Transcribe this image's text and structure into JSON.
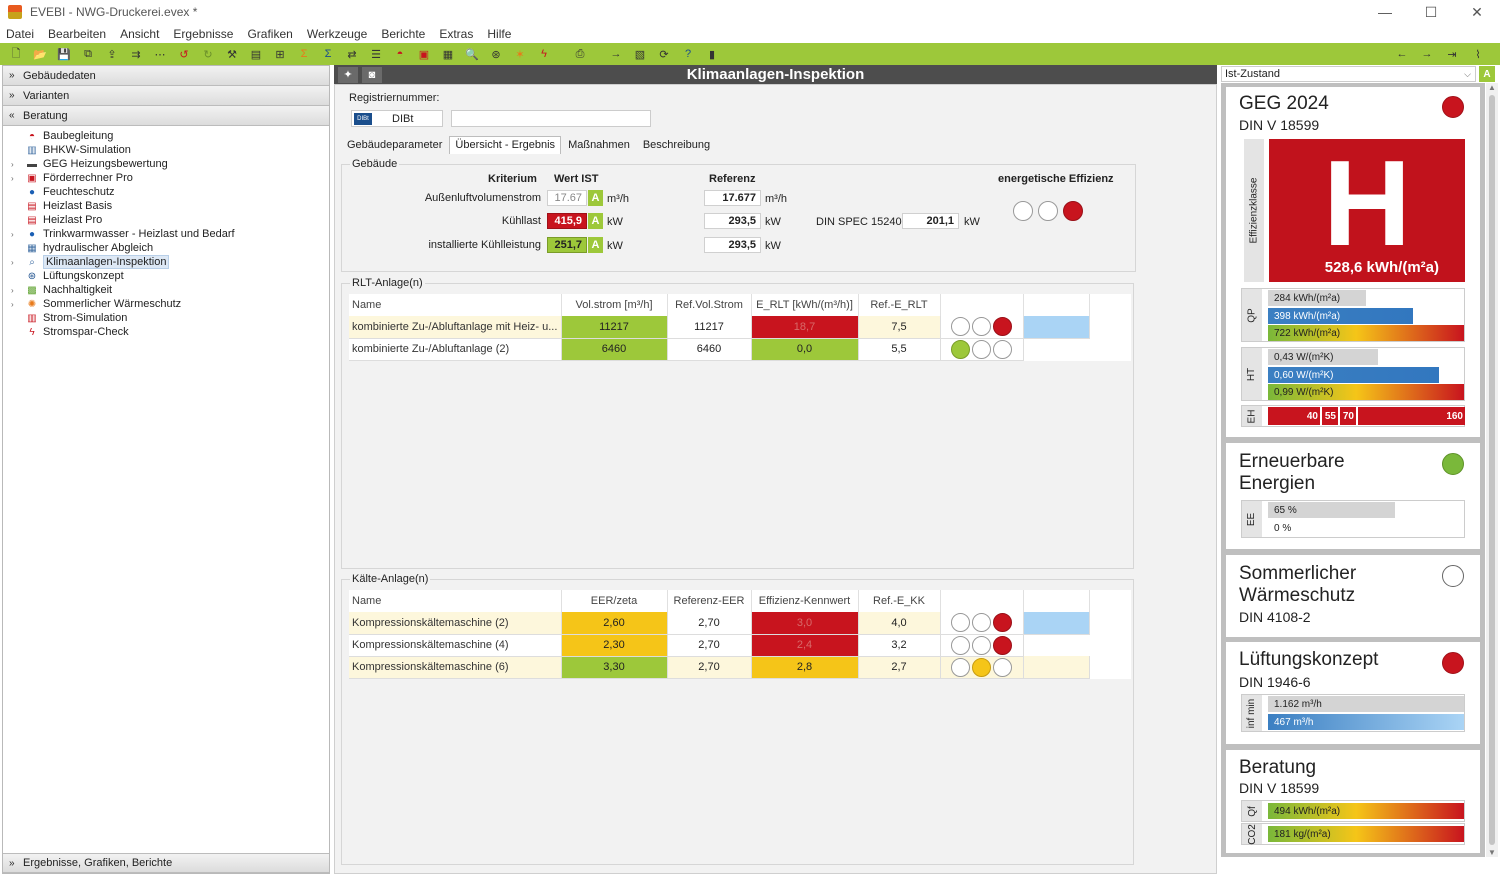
{
  "window": {
    "title": "EVEBI - NWG-Druckerei.evex *"
  },
  "menu": [
    "Datei",
    "Bearbeiten",
    "Ansicht",
    "Ergebnisse",
    "Grafiken",
    "Werkzeuge",
    "Berichte",
    "Extras",
    "Hilfe"
  ],
  "left": {
    "sections": {
      "gebaeudedaten": "Gebäudedaten",
      "varianten": "Varianten",
      "beratung": "Beratung",
      "ergebnisse": "Ergebnisse, Grafiken, Berichte"
    },
    "tree": [
      {
        "label": "Baubegleitung",
        "icon": "helmet-icon",
        "expandable": false
      },
      {
        "label": "BHKW-Simulation",
        "icon": "chp-icon",
        "expandable": false
      },
      {
        "label": "GEG Heizungsbewertung",
        "icon": "heating-icon",
        "expandable": true
      },
      {
        "label": "Förderrechner Pro",
        "icon": "calculator-icon",
        "expandable": true
      },
      {
        "label": "Feuchteschutz",
        "icon": "drop-icon",
        "expandable": false
      },
      {
        "label": "Heizlast Basis",
        "icon": "document-icon",
        "expandable": false
      },
      {
        "label": "Heizlast Pro",
        "icon": "document-icon",
        "expandable": false
      },
      {
        "label": "Trinkwarmwasser - Heizlast und Bedarf",
        "icon": "drop-icon",
        "expandable": true
      },
      {
        "label": "hydraulischer Abgleich",
        "icon": "valve-icon",
        "expandable": false
      },
      {
        "label": "Klimaanlagen-Inspektion",
        "icon": "magnifier-icon",
        "expandable": true,
        "selected": true
      },
      {
        "label": "Lüftungskonzept",
        "icon": "fan-icon",
        "expandable": false
      },
      {
        "label": "Nachhaltigkeit",
        "icon": "leaf-icon",
        "expandable": true
      },
      {
        "label": "Sommerlicher Wärmeschutz",
        "icon": "sun-icon",
        "expandable": true
      },
      {
        "label": "Strom-Simulation",
        "icon": "chart-icon",
        "expandable": false
      },
      {
        "label": "Stromspar-Check",
        "icon": "lightning-icon",
        "expandable": false
      }
    ]
  },
  "center": {
    "title": "Klimaanlagen-Inspektion",
    "regnum_label": "Registriernummer:",
    "dibt_label": "DIBt",
    "dibt_logo": "DIBt",
    "tabs": [
      "Gebäudeparameter",
      "Übersicht - Ergebnis",
      "Maßnahmen",
      "Beschreibung"
    ],
    "gebaeude": {
      "group": "Gebäude",
      "h_kriterium": "Kriterium",
      "h_wert": "Wert IST",
      "h_referenz": "Referenz",
      "h_effizienz": "energetische Effizienz",
      "rows": [
        {
          "label": "Außenluftvolumenstrom",
          "value": "17.67",
          "grade": "A",
          "unit": "m³/h",
          "ref": "17.677",
          "ref_unit": "m³/h"
        },
        {
          "label": "Kühllast",
          "value": "415,9",
          "grade": "A",
          "unit": "kW",
          "ref": "293,5",
          "ref_unit": "kW"
        },
        {
          "label": "installierte Kühlleistung",
          "value": "251,7",
          "grade": "A",
          "unit": "kW",
          "ref": "293,5",
          "ref_unit": "kW"
        }
      ],
      "din_label": "DIN SPEC 15240",
      "din_value": "201,1",
      "din_unit": "kW"
    },
    "rlt": {
      "group": "RLT-Anlage(n)",
      "headers": [
        "Name",
        "Vol.strom [m³/h]",
        "Ref.Vol.Strom",
        "E_RLT [kWh/(m³/h)]",
        "Ref.-E_RLT"
      ],
      "rows": [
        {
          "name": "kombinierte Zu-/Abluftanlage mit Heiz- u...",
          "vol": "11217",
          "ref_vol": "11217",
          "e_rlt": "18,7",
          "ref_e": "7,5"
        },
        {
          "name": "kombinierte Zu-/Abluftanlage (2)",
          "vol": "6460",
          "ref_vol": "6460",
          "e_rlt": "0,0",
          "ref_e": "5,5"
        }
      ]
    },
    "kaelte": {
      "group": "Kälte-Anlage(n)",
      "headers": [
        "Name",
        "EER/zeta",
        "Referenz-EER",
        "Effizienz-Kennwert",
        "Ref.-E_KK"
      ],
      "rows": [
        {
          "name": "Kompressionskältemaschine (2)",
          "eer": "2,60",
          "ref_eer": "2,70",
          "eff": "3,0",
          "ref_e": "4,0"
        },
        {
          "name": "Kompressionskältemaschine (4)",
          "eer": "2,30",
          "ref_eer": "2,70",
          "eff": "2,4",
          "ref_e": "3,2"
        },
        {
          "name": "Kompressionskältemaschine (6)",
          "eer": "3,30",
          "ref_eer": "2,70",
          "eff": "2,8",
          "ref_e": "2,7"
        }
      ]
    }
  },
  "right": {
    "state_select": "Ist-Zustand",
    "state_btn": "A",
    "geg": {
      "title": "GEG 2024",
      "subtitle": "DIN V 18599",
      "class_letter": "H",
      "class_label": "Effizienzklasse",
      "value": "528,6 kWh/(m²a)",
      "qp_label": "QP",
      "qp": [
        "284 kWh/(m²a)",
        "398 kWh/(m²a)",
        "722 kWh/(m²a)"
      ],
      "qp_fill": [
        0.5,
        0.74,
        1.0
      ],
      "ht_label": "HT",
      "ht": [
        "0,43 W/(m²K)",
        "0,60 W/(m²K)",
        "0,99 W/(m²K)"
      ],
      "ht_fill": [
        0.56,
        0.87,
        1.0
      ],
      "eh_label": "EH",
      "eh_marks": [
        "40",
        "55",
        "70",
        "160"
      ]
    },
    "ee": {
      "title": "Erneuerbare Energien",
      "label": "EE",
      "bars": [
        "65 %",
        "0 %"
      ],
      "fill": [
        0.65,
        0.0
      ]
    },
    "sws": {
      "title": "Sommerlicher Wärmeschutz",
      "subtitle": "DIN 4108-2"
    },
    "lk": {
      "title": "Lüftungskonzept",
      "subtitle": "DIN 1946-6",
      "label": "inf min",
      "bars": [
        "1.162 m³/h",
        "467 m³/h"
      ],
      "fill": [
        1.0,
        1.0
      ]
    },
    "ber": {
      "title": "Beratung",
      "subtitle": "DIN V 18599",
      "qf_label": "Qf",
      "qf": "494 kWh/(m²a)",
      "co2_label": "CO2",
      "co2": "181 kg/(m²a)"
    }
  }
}
